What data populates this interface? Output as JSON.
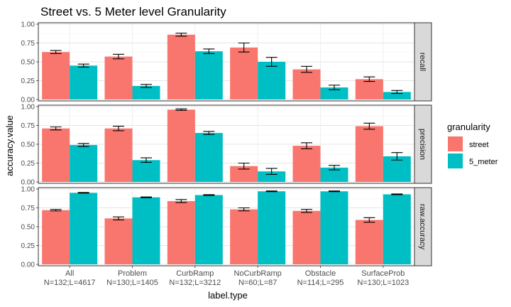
{
  "chart_data": {
    "type": "bar",
    "title": "Street vs. 5 Meter level Granularity",
    "xlabel": "label.type",
    "ylabel": "accuracy.value",
    "ylim": [
      0,
      1
    ],
    "y_ticks": [
      "0.00",
      "0.25",
      "0.50",
      "0.75",
      "1.00"
    ],
    "grid": true,
    "legend": {
      "title": "granularity",
      "placement": "right",
      "entries": [
        {
          "name": "street",
          "color": "#F8766D"
        },
        {
          "name": "5_meter",
          "color": "#00BFC4"
        }
      ]
    },
    "categories": [
      {
        "name": "All",
        "sub": "N=132;L=4617"
      },
      {
        "name": "Problem",
        "sub": "N=130;L=1405"
      },
      {
        "name": "CurbRamp",
        "sub": "N=132;L=3212"
      },
      {
        "name": "NoCurbRamp",
        "sub": "N=60;L=87"
      },
      {
        "name": "Obstacle",
        "sub": "N=114;L=295"
      },
      {
        "name": "SurfaceProb",
        "sub": "N=130;L=1023"
      }
    ],
    "facets": [
      {
        "label": "recall",
        "series": [
          {
            "name": "street",
            "values": [
              0.63,
              0.57,
              0.86,
              0.69,
              0.4,
              0.27
            ],
            "errors": [
              0.02,
              0.03,
              0.02,
              0.06,
              0.04,
              0.03
            ]
          },
          {
            "name": "5_meter",
            "values": [
              0.45,
              0.18,
              0.64,
              0.5,
              0.16,
              0.1
            ],
            "errors": [
              0.02,
              0.02,
              0.03,
              0.06,
              0.03,
              0.02
            ]
          }
        ]
      },
      {
        "label": "precision",
        "series": [
          {
            "name": "street",
            "values": [
              0.71,
              0.71,
              0.96,
              0.21,
              0.48,
              0.74
            ],
            "errors": [
              0.02,
              0.03,
              0.01,
              0.04,
              0.04,
              0.04
            ]
          },
          {
            "name": "5_meter",
            "values": [
              0.49,
              0.29,
              0.65,
              0.14,
              0.19,
              0.34
            ],
            "errors": [
              0.02,
              0.03,
              0.02,
              0.04,
              0.03,
              0.05
            ]
          }
        ]
      },
      {
        "label": "raw.accuracy",
        "series": [
          {
            "name": "street",
            "values": [
              0.72,
              0.61,
              0.84,
              0.73,
              0.71,
              0.59
            ],
            "errors": [
              0.01,
              0.02,
              0.02,
              0.02,
              0.02,
              0.03
            ]
          },
          {
            "name": "5_meter",
            "values": [
              0.95,
              0.89,
              0.92,
              0.97,
              0.97,
              0.93
            ],
            "errors": [
              0.005,
              0.005,
              0.005,
              0.005,
              0.005,
              0.005
            ]
          }
        ]
      }
    ]
  }
}
